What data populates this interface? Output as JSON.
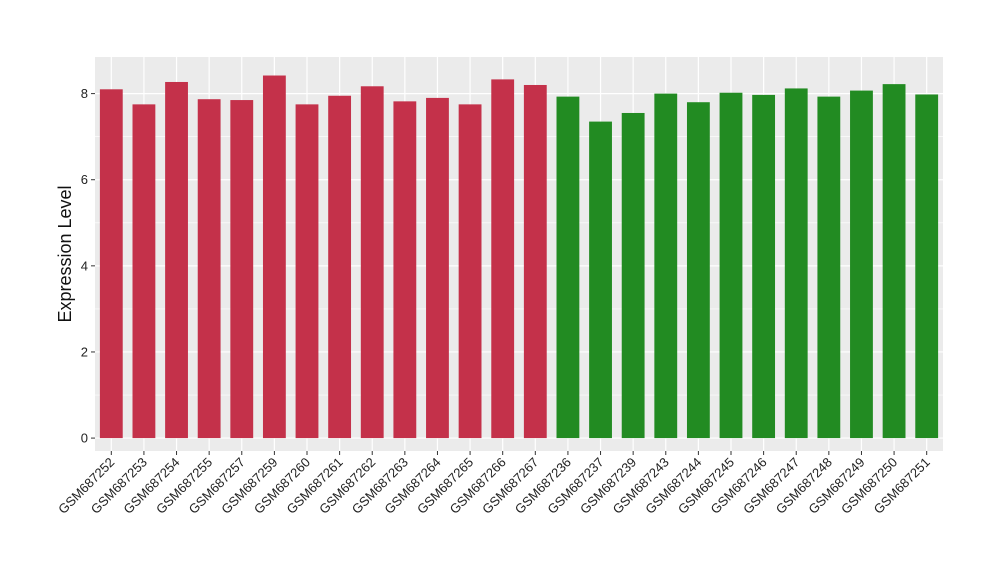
{
  "chart_data": {
    "type": "bar",
    "title": "",
    "xlabel": "",
    "ylabel": "Expression Level",
    "ylim": [
      -0.3,
      8.85
    ],
    "yticks": [
      0,
      2,
      4,
      6,
      8
    ],
    "grid": true,
    "categories": [
      "GSM687252",
      "GSM687253",
      "GSM687254",
      "GSM687255",
      "GSM687257",
      "GSM687259",
      "GSM687260",
      "GSM687261",
      "GSM687262",
      "GSM687263",
      "GSM687264",
      "GSM687265",
      "GSM687266",
      "GSM687267",
      "GSM687236",
      "GSM687237",
      "GSM687239",
      "GSM687243",
      "GSM687244",
      "GSM687245",
      "GSM687246",
      "GSM687247",
      "GSM687248",
      "GSM687249",
      "GSM687250",
      "GSM687251"
    ],
    "values": [
      8.1,
      7.75,
      8.27,
      7.87,
      7.85,
      8.42,
      7.75,
      7.95,
      8.17,
      7.82,
      7.9,
      7.75,
      8.33,
      8.2,
      7.93,
      7.35,
      7.55,
      8.0,
      7.8,
      8.02,
      7.97,
      8.12,
      7.93,
      8.07,
      8.22,
      7.98
    ],
    "bar_colors": [
      "#C4314A",
      "#C4314A",
      "#C4314A",
      "#C4314A",
      "#C4314A",
      "#C4314A",
      "#C4314A",
      "#C4314A",
      "#C4314A",
      "#C4314A",
      "#C4314A",
      "#C4314A",
      "#C4314A",
      "#C4314A",
      "#228B22",
      "#228B22",
      "#228B22",
      "#228B22",
      "#228B22",
      "#228B22",
      "#228B22",
      "#228B22",
      "#228B22",
      "#228B22",
      "#228B22",
      "#228B22"
    ],
    "panel_background": "#EBEBEB",
    "grid_color": "#FFFFFF"
  }
}
